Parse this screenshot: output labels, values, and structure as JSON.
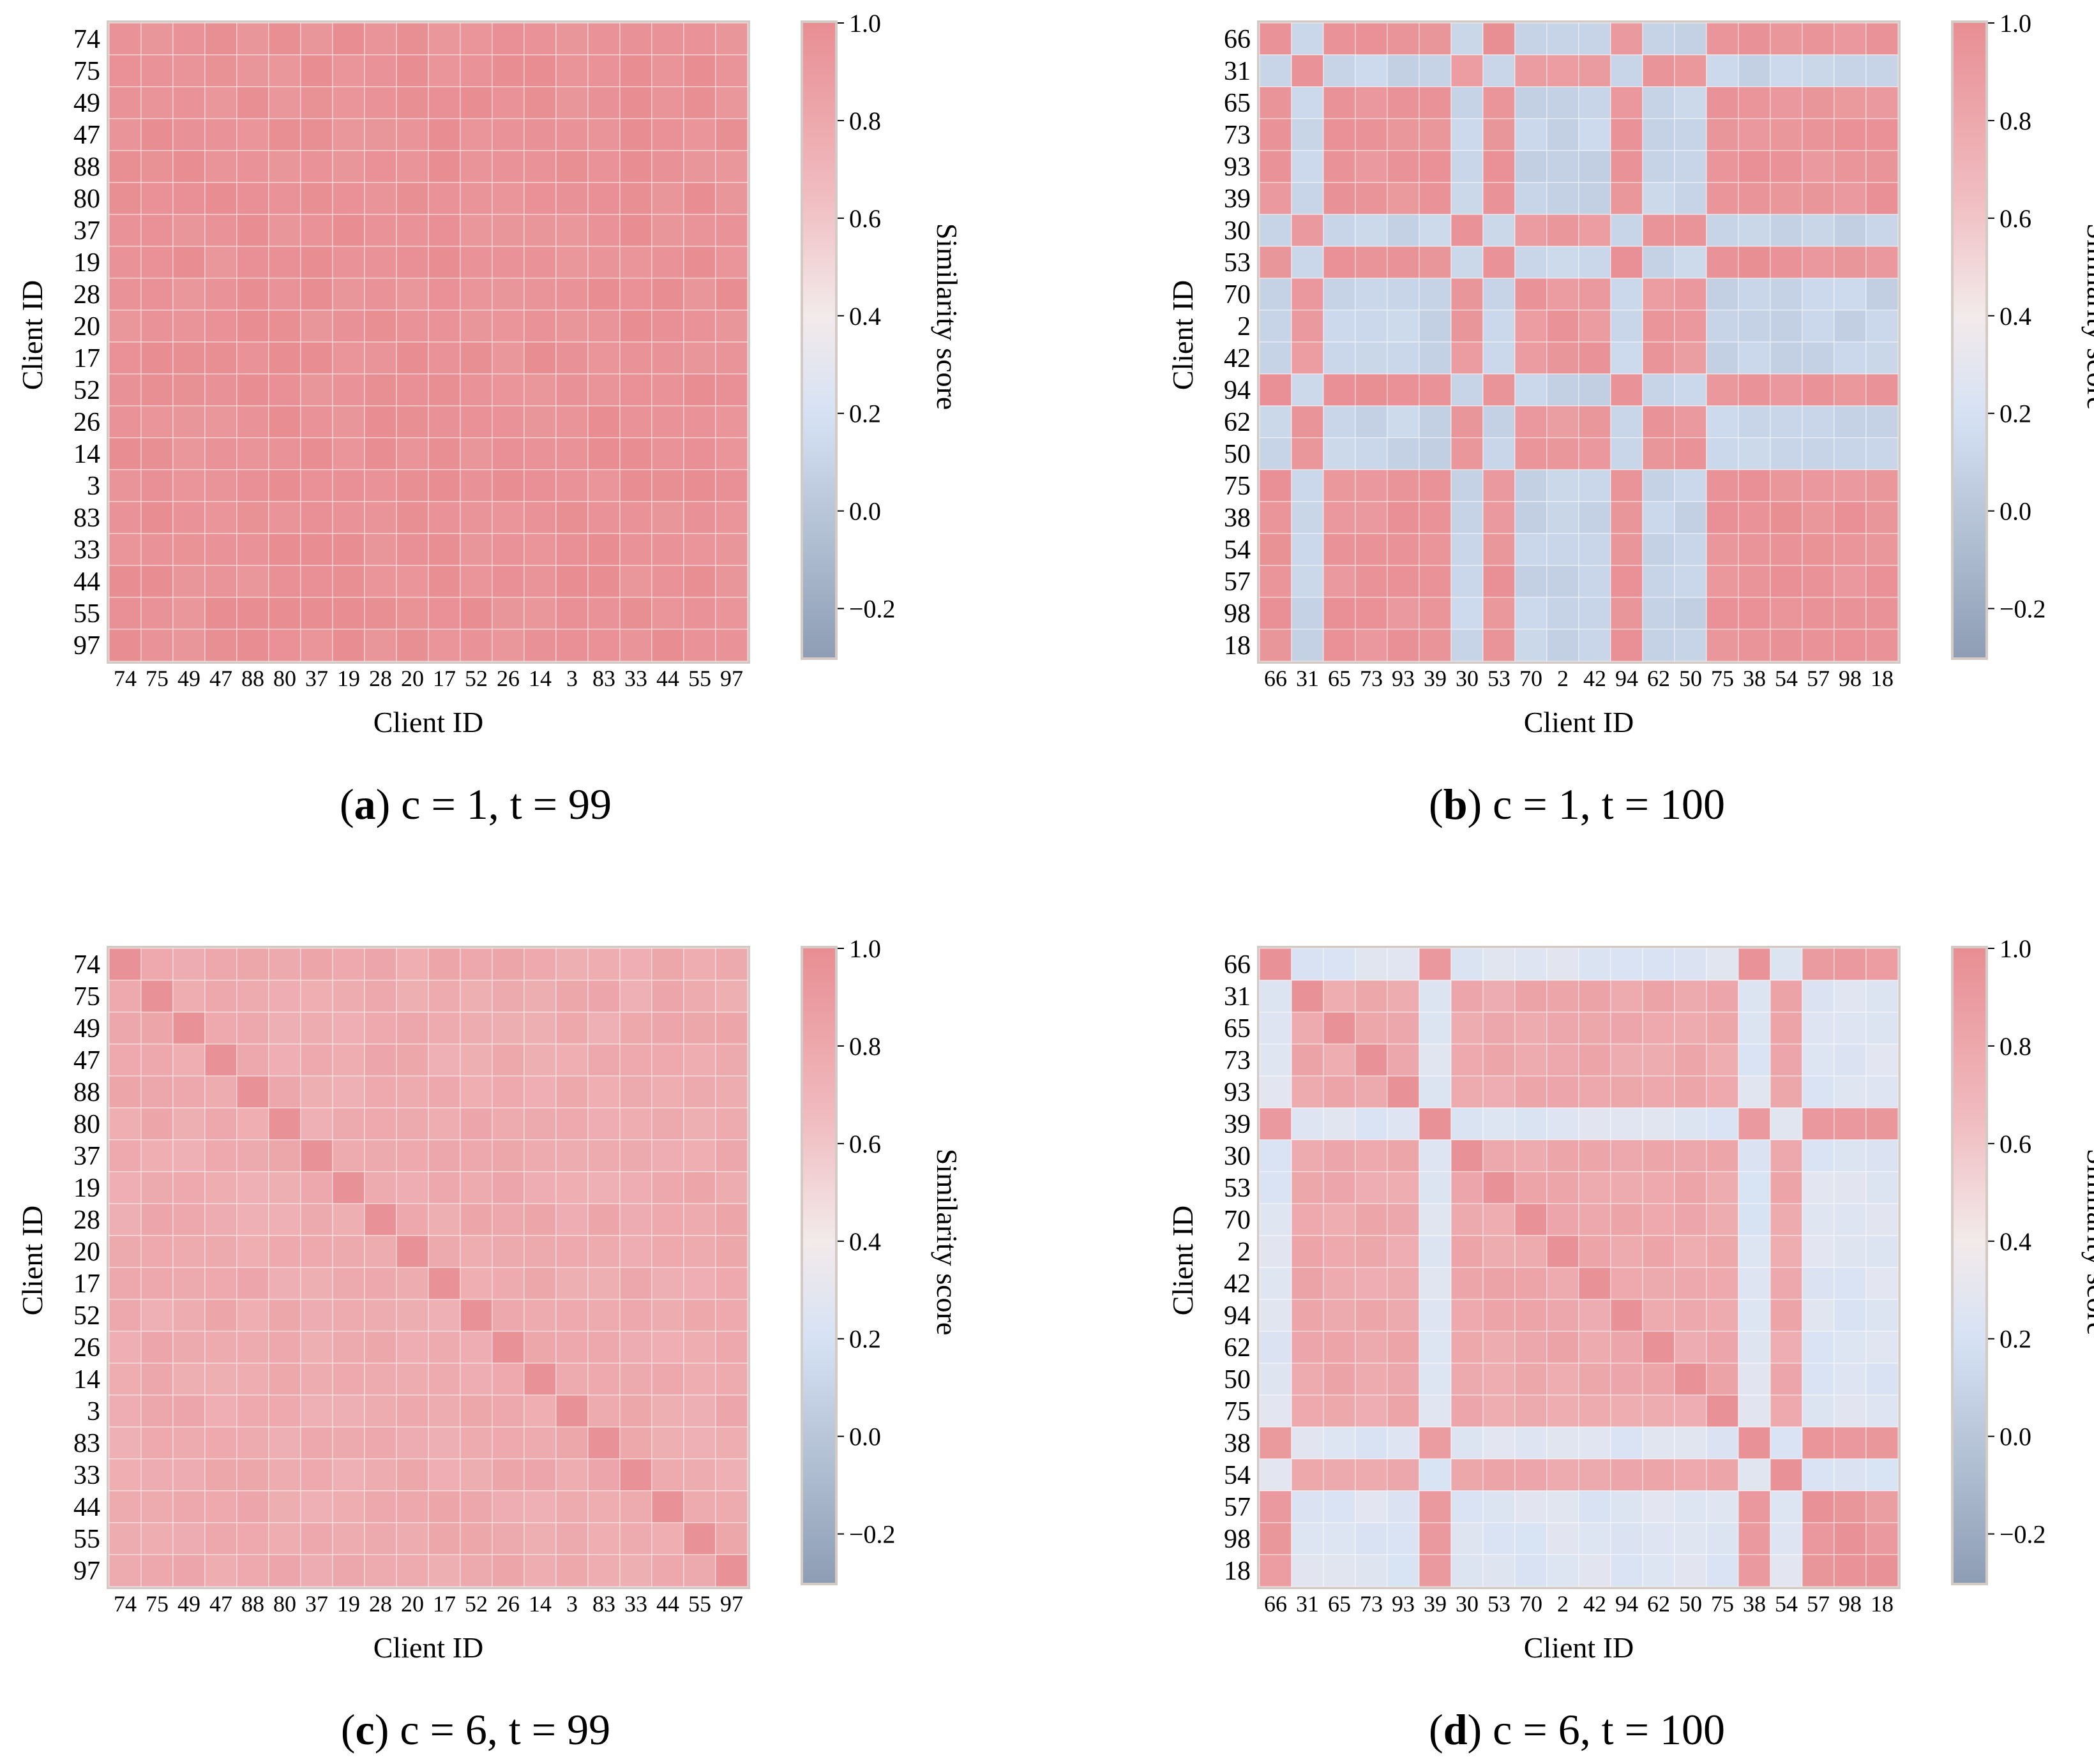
{
  "colorbar": {
    "label": "Similarity score",
    "ticks": [
      "1.0",
      "0.8",
      "0.6",
      "0.4",
      "0.2",
      "0.0",
      "−0.2"
    ],
    "tick_values": [
      1.0,
      0.8,
      0.6,
      0.4,
      0.2,
      0.0,
      -0.2
    ],
    "vmin": -0.3,
    "vmax": 1.0,
    "colors": {
      "low": "#8e9db4",
      "mid_low": "#d6e2f4",
      "mid": "#f3eaea",
      "mid_high": "#f0bcc0",
      "high": "#e88e93"
    }
  },
  "chart_data": [
    {
      "type": "heatmap",
      "caption": {
        "label": "a",
        "text": "c = 1, t = 99"
      },
      "xlabel": "Client ID",
      "ylabel": "Client ID",
      "clients": [
        "74",
        "75",
        "49",
        "47",
        "88",
        "80",
        "37",
        "19",
        "28",
        "20",
        "17",
        "52",
        "26",
        "14",
        "3",
        "83",
        "33",
        "44",
        "55",
        "97"
      ],
      "block_values": [
        [
          0.97
        ]
      ],
      "clusters": [
        0,
        0,
        0,
        0,
        0,
        0,
        0,
        0,
        0,
        0,
        0,
        0,
        0,
        0,
        0,
        0,
        0,
        0,
        0,
        0
      ],
      "diagonal": 0.97
    },
    {
      "type": "heatmap",
      "caption": {
        "label": "b",
        "text": "c = 1, t = 100"
      },
      "xlabel": "Client ID",
      "ylabel": "Client ID",
      "clients": [
        "66",
        "31",
        "65",
        "73",
        "93",
        "39",
        "30",
        "53",
        "70",
        "2",
        "42",
        "94",
        "62",
        "50",
        "75",
        "38",
        "54",
        "57",
        "98",
        "18"
      ],
      "block_values": [
        [
          0.95,
          0.1
        ],
        [
          0.1,
          0.92
        ]
      ],
      "clusters": [
        0,
        1,
        0,
        0,
        0,
        0,
        1,
        0,
        1,
        1,
        1,
        0,
        1,
        1,
        0,
        0,
        0,
        0,
        0,
        0
      ],
      "diagonal": 0.97
    },
    {
      "type": "heatmap",
      "caption": {
        "label": "c",
        "text": "c = 6, t = 99"
      },
      "xlabel": "Client ID",
      "ylabel": "Client ID",
      "clients": [
        "74",
        "75",
        "49",
        "47",
        "88",
        "80",
        "37",
        "19",
        "28",
        "20",
        "17",
        "52",
        "26",
        "14",
        "3",
        "83",
        "33",
        "44",
        "55",
        "97"
      ],
      "block_values": [
        [
          0.78
        ]
      ],
      "clusters": [
        0,
        0,
        0,
        0,
        0,
        0,
        0,
        0,
        0,
        0,
        0,
        0,
        0,
        0,
        0,
        0,
        0,
        0,
        0,
        0
      ],
      "diagonal": 0.98
    },
    {
      "type": "heatmap",
      "caption": {
        "label": "d",
        "text": "c = 6, t = 100"
      },
      "xlabel": "Client ID",
      "ylabel": "Client ID",
      "clients": [
        "66",
        "31",
        "65",
        "73",
        "93",
        "39",
        "30",
        "53",
        "70",
        "2",
        "42",
        "94",
        "62",
        "50",
        "75",
        "38",
        "54",
        "57",
        "98",
        "18"
      ],
      "block_values": [
        [
          0.92,
          0.25
        ],
        [
          0.25,
          0.8
        ]
      ],
      "clusters": [
        0,
        1,
        1,
        1,
        1,
        0,
        1,
        1,
        1,
        1,
        1,
        1,
        1,
        1,
        1,
        0,
        1,
        0,
        0,
        0
      ],
      "diagonal": 0.98
    }
  ]
}
